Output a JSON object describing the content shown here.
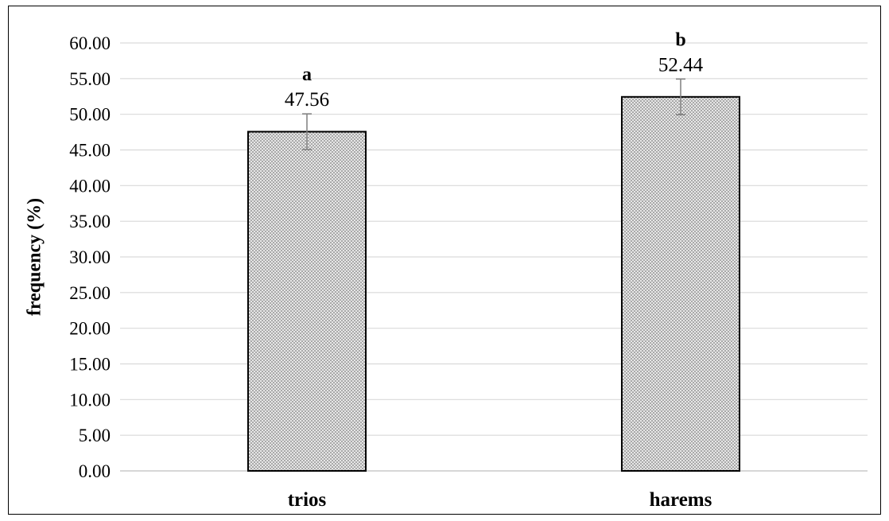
{
  "chart_data": {
    "type": "bar",
    "ylabel": "frequency (%)",
    "xlabel": "",
    "ylim": [
      0,
      60
    ],
    "ytick_step": 5,
    "ytick_labels": [
      "0.00",
      "5.00",
      "10.00",
      "15.00",
      "20.00",
      "25.00",
      "30.00",
      "35.00",
      "40.00",
      "45.00",
      "50.00",
      "55.00",
      "60.00"
    ],
    "grid": true,
    "legend": "none",
    "categories": [
      "trios",
      "harems"
    ],
    "values": [
      47.56,
      52.44
    ],
    "value_labels": [
      "47.56",
      "52.44"
    ],
    "errors": [
      2.5,
      2.5
    ],
    "significance_letters": [
      "a",
      "b"
    ],
    "bar_pattern": "dotted",
    "colors": {
      "bar_fill": "#e6e6e6",
      "bar_dots": "#555555",
      "bar_stroke": "#000000",
      "grid": "#d9d9d9",
      "error_bar": "#7f7f7f"
    }
  }
}
